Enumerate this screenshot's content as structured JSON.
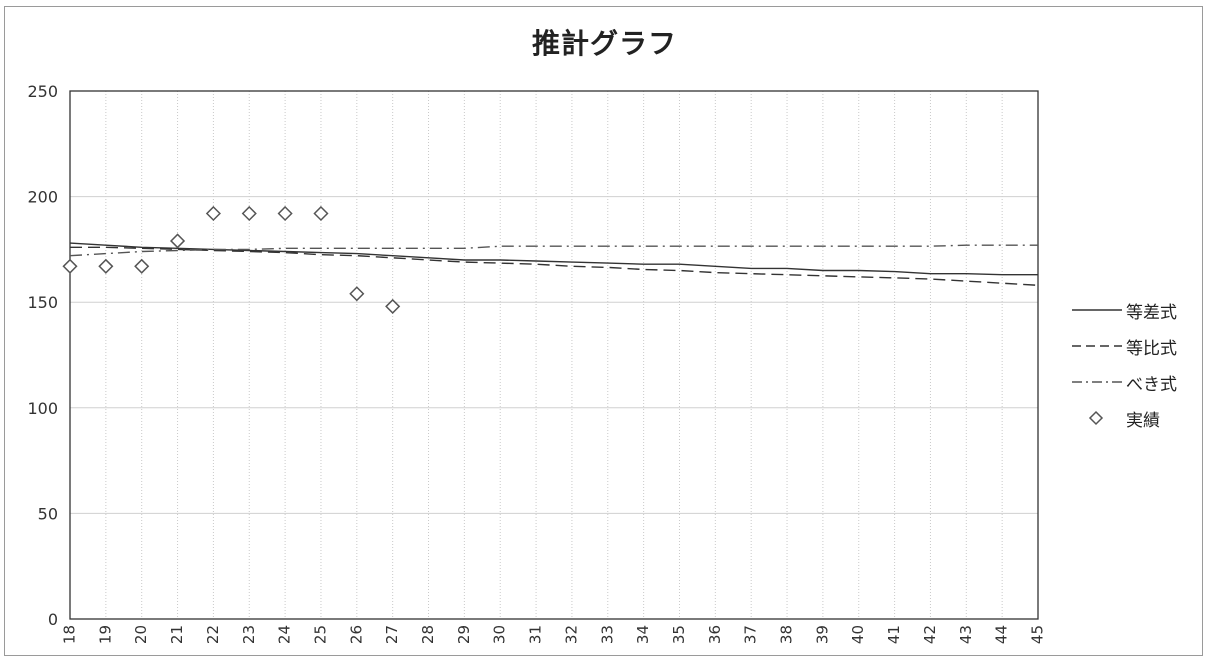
{
  "chart_data": {
    "type": "line",
    "title": "推計グラフ",
    "xlabel": "",
    "ylabel": "",
    "x": [
      18,
      19,
      20,
      21,
      22,
      23,
      24,
      25,
      26,
      27,
      28,
      29,
      30,
      31,
      32,
      33,
      34,
      35,
      36,
      37,
      38,
      39,
      40,
      41,
      42,
      43,
      44,
      45
    ],
    "x_tick_labels": [
      "18",
      "19",
      "20",
      "21",
      "22",
      "23",
      "24",
      "25",
      "26",
      "27",
      "28",
      "29",
      "30",
      "31",
      "32",
      "33",
      "34",
      "35",
      "36",
      "37",
      "38",
      "39",
      "40",
      "41",
      "42",
      "43",
      "44",
      "45"
    ],
    "xlim": [
      18,
      45
    ],
    "ylim": [
      0,
      250
    ],
    "y_ticks": [
      0,
      50,
      100,
      150,
      200,
      250
    ],
    "y_tick_labels": [
      "0",
      "50",
      "100",
      "150",
      "200",
      "250"
    ],
    "grid": true,
    "legend_position": "right",
    "series": [
      {
        "name": "等差式",
        "style": "solid",
        "color": "#333333",
        "x": [
          18,
          19,
          20,
          21,
          22,
          23,
          24,
          25,
          26,
          27,
          28,
          29,
          30,
          31,
          32,
          33,
          34,
          35,
          36,
          37,
          38,
          39,
          40,
          41,
          42,
          43,
          44,
          45
        ],
        "values": [
          178,
          177,
          176,
          175.5,
          175,
          174.5,
          174,
          173.5,
          173,
          172,
          171,
          170,
          170,
          169.5,
          169,
          168.5,
          168,
          168,
          167,
          166,
          166,
          165,
          165,
          164.5,
          163.5,
          163.5,
          163,
          163
        ]
      },
      {
        "name": "等比式",
        "style": "dashed",
        "color": "#333333",
        "x": [
          18,
          19,
          20,
          21,
          22,
          23,
          24,
          25,
          26,
          27,
          28,
          29,
          30,
          31,
          32,
          33,
          34,
          35,
          36,
          37,
          38,
          39,
          40,
          41,
          42,
          43,
          44,
          45
        ],
        "values": [
          176,
          176,
          175.5,
          175,
          174.5,
          174,
          173.5,
          172.5,
          172,
          171,
          170,
          169,
          168.5,
          168,
          167,
          166.5,
          165.5,
          165,
          164,
          163.5,
          163,
          162.5,
          162,
          161.5,
          161,
          160,
          159,
          158
        ]
      },
      {
        "name": "べき式",
        "style": "dashdot",
        "color": "#555555",
        "x": [
          18,
          19,
          20,
          21,
          22,
          23,
          24,
          25,
          26,
          27,
          28,
          29,
          30,
          31,
          32,
          33,
          34,
          35,
          36,
          37,
          38,
          39,
          40,
          41,
          42,
          43,
          44,
          45
        ],
        "values": [
          172,
          173,
          174,
          174.5,
          175,
          175,
          175.5,
          175.5,
          175.5,
          175.5,
          175.5,
          175.5,
          176.5,
          176.5,
          176.5,
          176.5,
          176.5,
          176.5,
          176.5,
          176.5,
          176.5,
          176.5,
          176.5,
          176.5,
          176.5,
          177,
          177,
          177
        ]
      },
      {
        "name": "実績",
        "style": "markers",
        "marker": "diamond",
        "color": "#555555",
        "x": [
          18,
          19,
          20,
          21,
          22,
          23,
          24,
          25,
          26,
          27
        ],
        "values": [
          167,
          167,
          167,
          179,
          192,
          192,
          192,
          192,
          154,
          148
        ]
      }
    ]
  }
}
